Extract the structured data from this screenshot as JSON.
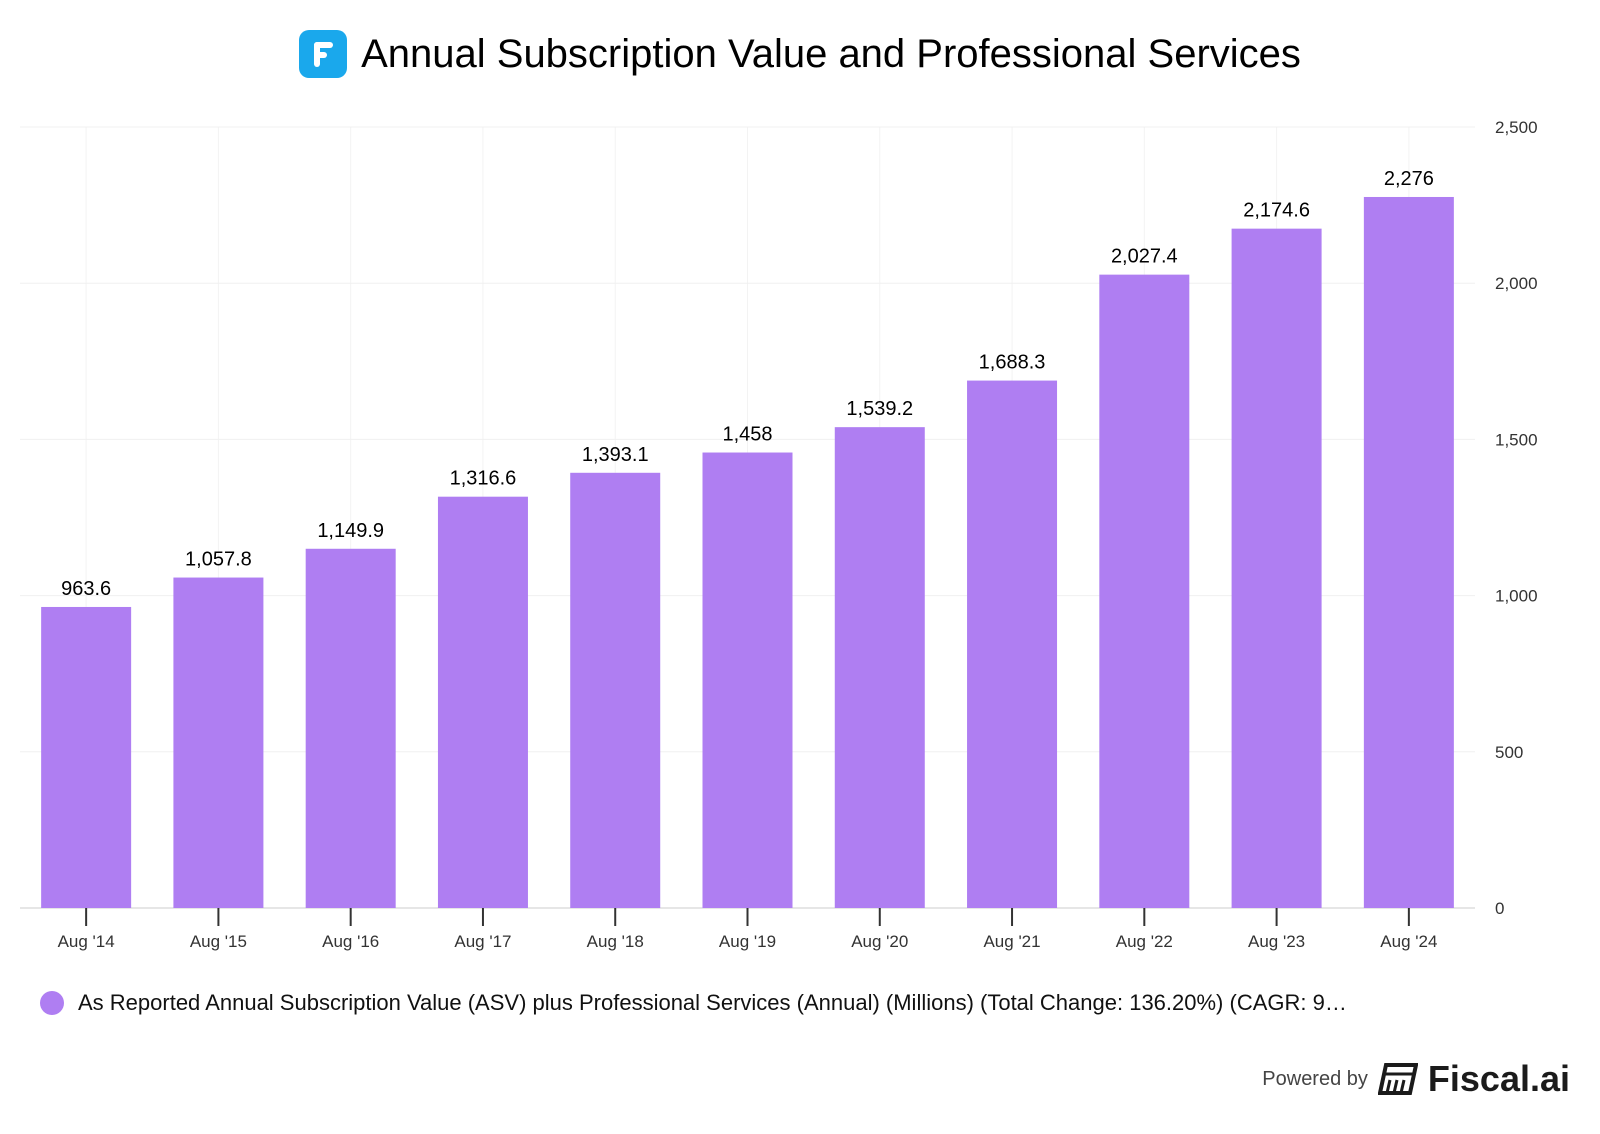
{
  "title": "Annual Subscription Value and Professional Services",
  "chart_data": {
    "type": "bar",
    "title": "Annual Subscription Value and Professional Services",
    "categories": [
      "Aug '14",
      "Aug '15",
      "Aug '16",
      "Aug '17",
      "Aug '18",
      "Aug '19",
      "Aug '20",
      "Aug '21",
      "Aug '22",
      "Aug '23",
      "Aug '24"
    ],
    "values": [
      963.6,
      1057.8,
      1149.9,
      1316.6,
      1393.1,
      1458,
      1539.2,
      1688.3,
      2027.4,
      2174.6,
      2276
    ],
    "data_labels": [
      "963.6",
      "1,057.8",
      "1,149.9",
      "1,316.6",
      "1,393.1",
      "1,458",
      "1,539.2",
      "1,688.3",
      "2,027.4",
      "2,174.6",
      "2,276"
    ],
    "yticks": [
      0,
      500,
      1000,
      1500,
      2000,
      2500
    ],
    "ytick_labels": [
      "0",
      "500",
      "1,000",
      "1,500",
      "2,000",
      "2,500"
    ],
    "ylim": [
      0,
      2500
    ],
    "yaxis_position": "right",
    "grid": true,
    "legend_position": "bottom-left",
    "series_name": "As Reported Annual Subscription Value (ASV) plus Professional Services (Annual) (Millions) (Total Change: 136.20%) (CAGR: 9…",
    "color": "#af7ef2"
  },
  "footer": {
    "powered_by": "Powered by",
    "brand": "Fiscal.ai"
  }
}
